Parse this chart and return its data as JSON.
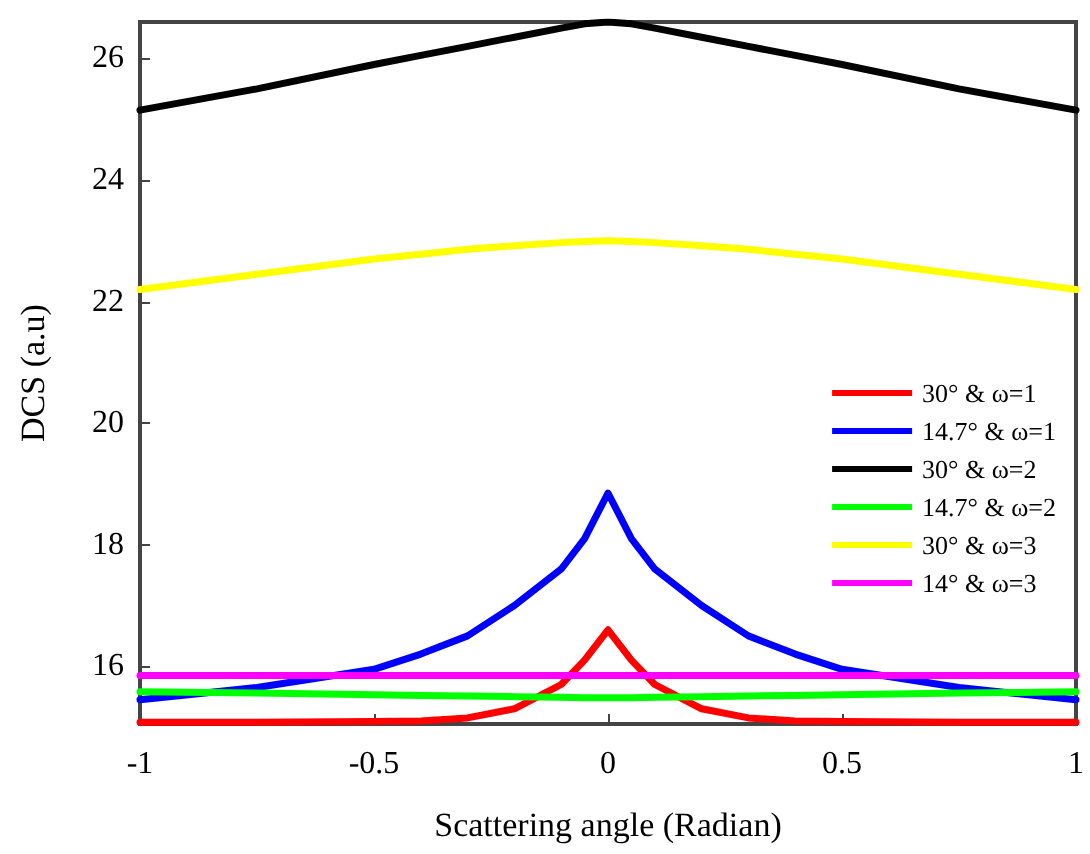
{
  "chart_data": {
    "type": "line",
    "xlabel": "Scattering angle (Radian)",
    "ylabel": "DCS (a.u)",
    "xlim": [
      -1,
      1
    ],
    "xticks": [
      -1,
      -0.5,
      0,
      0.5,
      1
    ],
    "ylim": [
      15.05,
      26.6
    ],
    "yticks": [
      16,
      18,
      20,
      22,
      24,
      26
    ],
    "grid": false,
    "legend": "right",
    "marker": "none",
    "line_style": "solid",
    "x": [
      -1,
      -0.75,
      -0.5,
      -0.4,
      -0.3,
      -0.2,
      -0.1,
      -0.05,
      0,
      0.05,
      0.1,
      0.2,
      0.3,
      0.4,
      0.5,
      0.75,
      1
    ],
    "series": [
      {
        "name": "30° & ω=1",
        "color": "#ff0000",
        "values": [
          15.08,
          15.08,
          15.09,
          15.1,
          15.15,
          15.3,
          15.7,
          16.1,
          16.6,
          16.1,
          15.7,
          15.3,
          15.15,
          15.1,
          15.09,
          15.08,
          15.08
        ]
      },
      {
        "name": "14.7° & ω=1",
        "color": "#0000ff",
        "values": [
          15.45,
          15.65,
          15.95,
          16.2,
          16.5,
          17.0,
          17.6,
          18.1,
          18.85,
          18.1,
          17.6,
          17.0,
          16.5,
          16.2,
          15.95,
          15.65,
          15.45
        ]
      },
      {
        "name": "30° & ω=2",
        "color": "#000000",
        "values": [
          25.15,
          25.5,
          25.9,
          26.05,
          26.2,
          26.35,
          26.5,
          26.57,
          26.6,
          26.57,
          26.5,
          26.35,
          26.2,
          26.05,
          25.9,
          25.5,
          25.15
        ]
      },
      {
        "name": "14.7° & ω=2",
        "color": "#00ff00",
        "values": [
          15.58,
          15.56,
          15.53,
          15.52,
          15.51,
          15.5,
          15.49,
          15.48,
          15.48,
          15.48,
          15.49,
          15.5,
          15.51,
          15.52,
          15.53,
          15.56,
          15.58
        ]
      },
      {
        "name": "30° & ω=3",
        "color": "#ffff00",
        "values": [
          22.2,
          22.45,
          22.7,
          22.78,
          22.86,
          22.92,
          22.97,
          22.99,
          23.0,
          22.99,
          22.97,
          22.92,
          22.86,
          22.78,
          22.7,
          22.45,
          22.2
        ]
      },
      {
        "name": "14° & ω=3",
        "color": "#ff00ff",
        "values": [
          15.85,
          15.85,
          15.85,
          15.85,
          15.85,
          15.85,
          15.85,
          15.85,
          15.85,
          15.85,
          15.85,
          15.85,
          15.85,
          15.85,
          15.85,
          15.85,
          15.85
        ]
      }
    ]
  }
}
